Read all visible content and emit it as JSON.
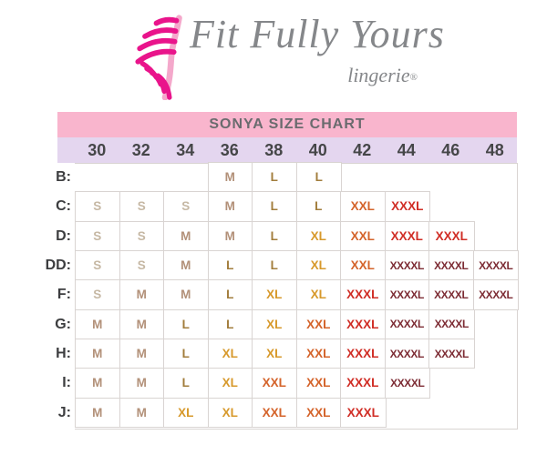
{
  "logo": {
    "brand": "Fit Fully Yours",
    "sub": "lingerie",
    "registered": "®"
  },
  "chart_data": {
    "type": "table",
    "title": "SONYA SIZE CHART",
    "columns": [
      "30",
      "32",
      "34",
      "36",
      "38",
      "40",
      "42",
      "44",
      "46",
      "48"
    ],
    "rows": [
      {
        "label": "B:",
        "values": [
          null,
          null,
          null,
          "M",
          "L",
          "L",
          null,
          null,
          null,
          null
        ]
      },
      {
        "label": "C:",
        "values": [
          "S",
          "S",
          "S",
          "M",
          "L",
          "L",
          "XXL",
          "XXXL",
          null,
          null
        ]
      },
      {
        "label": "D:",
        "values": [
          "S",
          "S",
          "M",
          "M",
          "L",
          "XL",
          "XXL",
          "XXXL",
          "XXXL",
          null
        ]
      },
      {
        "label": "DD:",
        "values": [
          "S",
          "S",
          "M",
          "L",
          "L",
          "XL",
          "XXL",
          "XXXXL",
          "XXXXL",
          "XXXXL"
        ]
      },
      {
        "label": "F:",
        "values": [
          "S",
          "M",
          "M",
          "L",
          "XL",
          "XL",
          "XXXL",
          "XXXXL",
          "XXXXL",
          "XXXXL"
        ]
      },
      {
        "label": "G:",
        "values": [
          "M",
          "M",
          "L",
          "L",
          "XL",
          "XXL",
          "XXXL",
          "XXXXL",
          "XXXXL",
          null
        ]
      },
      {
        "label": "H:",
        "values": [
          "M",
          "M",
          "L",
          "XL",
          "XL",
          "XXL",
          "XXXL",
          "XXXXL",
          "XXXXL",
          null
        ]
      },
      {
        "label": "I:",
        "values": [
          "M",
          "M",
          "L",
          "XL",
          "XXL",
          "XXL",
          "XXXL",
          "XXXXL",
          null,
          null
        ]
      },
      {
        "label": "J:",
        "values": [
          "M",
          "M",
          "XL",
          "XL",
          "XXL",
          "XXL",
          "XXXL",
          null,
          null,
          null
        ]
      }
    ],
    "layout": {
      "grid": "on",
      "legend": "none"
    }
  },
  "colors": {
    "ui": {
      "title-band-bg": "#f9b5cd",
      "size-band-bg": "#e4d6ef",
      "cell-border": "#d9d4d2",
      "title-text": "#6a6b6e",
      "band-text": "#454648",
      "label-text": "#3c3d3f",
      "logo-text": "#85878a",
      "logo-magenta": "#e9148b",
      "logo-light-pink": "#f4a8cb"
    },
    "sizes": {
      "S": "#c6b8a4",
      "M": "#b29078",
      "L": "#a27d3c",
      "XL": "#d7992b",
      "XXL": "#d4632a",
      "XXXL": "#d02d25",
      "XXXXL": "#7d2c34"
    }
  }
}
